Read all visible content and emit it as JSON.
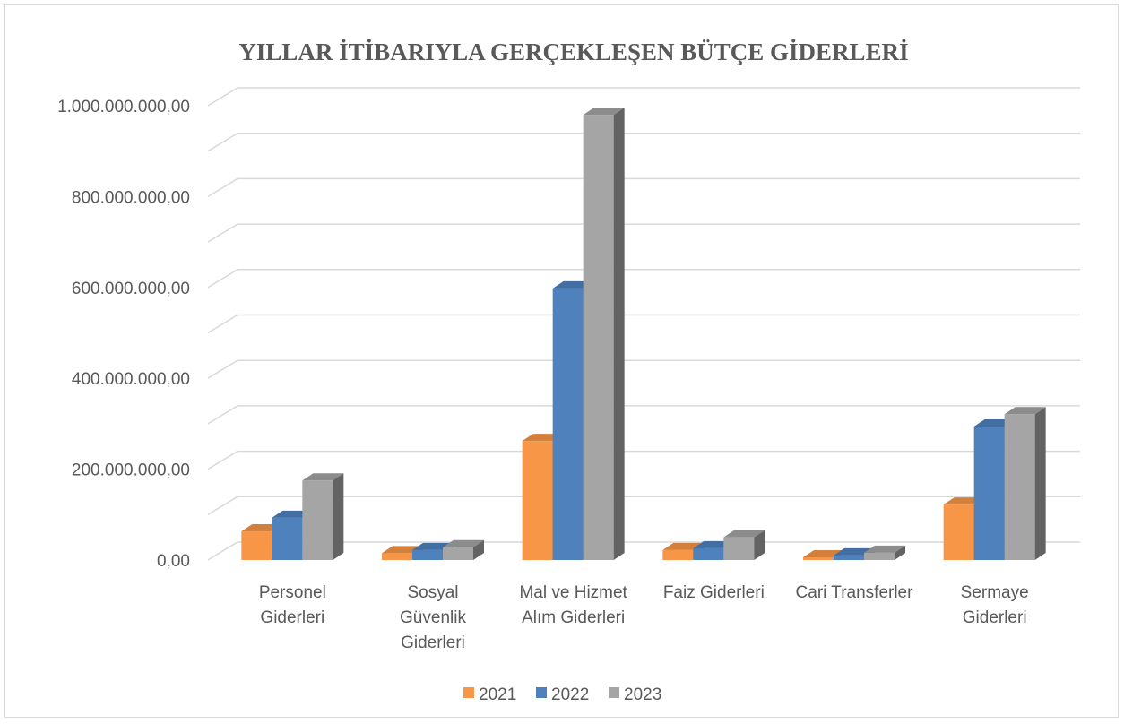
{
  "chart_data": {
    "type": "bar3d",
    "title": "YILLAR İTİBARIYLA GERÇEKLEŞEN BÜTÇE GİDERLERİ",
    "categories": [
      "Personel Giderleri",
      "Sosyal Güvenlik Giderleri",
      "Mal ve Hizmet Alım Giderleri",
      "Faiz Giderleri",
      "Cari Transferler",
      "Sermaye Giderleri"
    ],
    "series": [
      {
        "name": "2021",
        "color": "#f79646",
        "values": [
          63000000,
          15000000,
          262000000,
          22000000,
          6000000,
          122000000
        ]
      },
      {
        "name": "2022",
        "color": "#4f81bd",
        "values": [
          93000000,
          22000000,
          598000000,
          26000000,
          10000000,
          294000000
        ]
      },
      {
        "name": "2023",
        "color": "#a5a5a5",
        "values": [
          175000000,
          28000000,
          980000000,
          50000000,
          16000000,
          321000000
        ]
      }
    ],
    "ylim": [
      0,
      1000000000
    ],
    "yticks": [
      {
        "value": 0,
        "label": "0,00"
      },
      {
        "value": 200000000,
        "label": "200.000.000,00"
      },
      {
        "value": 400000000,
        "label": "400.000.000,00"
      },
      {
        "value": 600000000,
        "label": "600.000.000,00"
      },
      {
        "value": 800000000,
        "label": "800.000.000,00"
      },
      {
        "value": 1000000000,
        "label": "1.000.000.000,00"
      }
    ],
    "yticks_minor": [
      100000000,
      300000000,
      500000000,
      700000000,
      900000000
    ],
    "grid": true,
    "legend": "bottom"
  }
}
